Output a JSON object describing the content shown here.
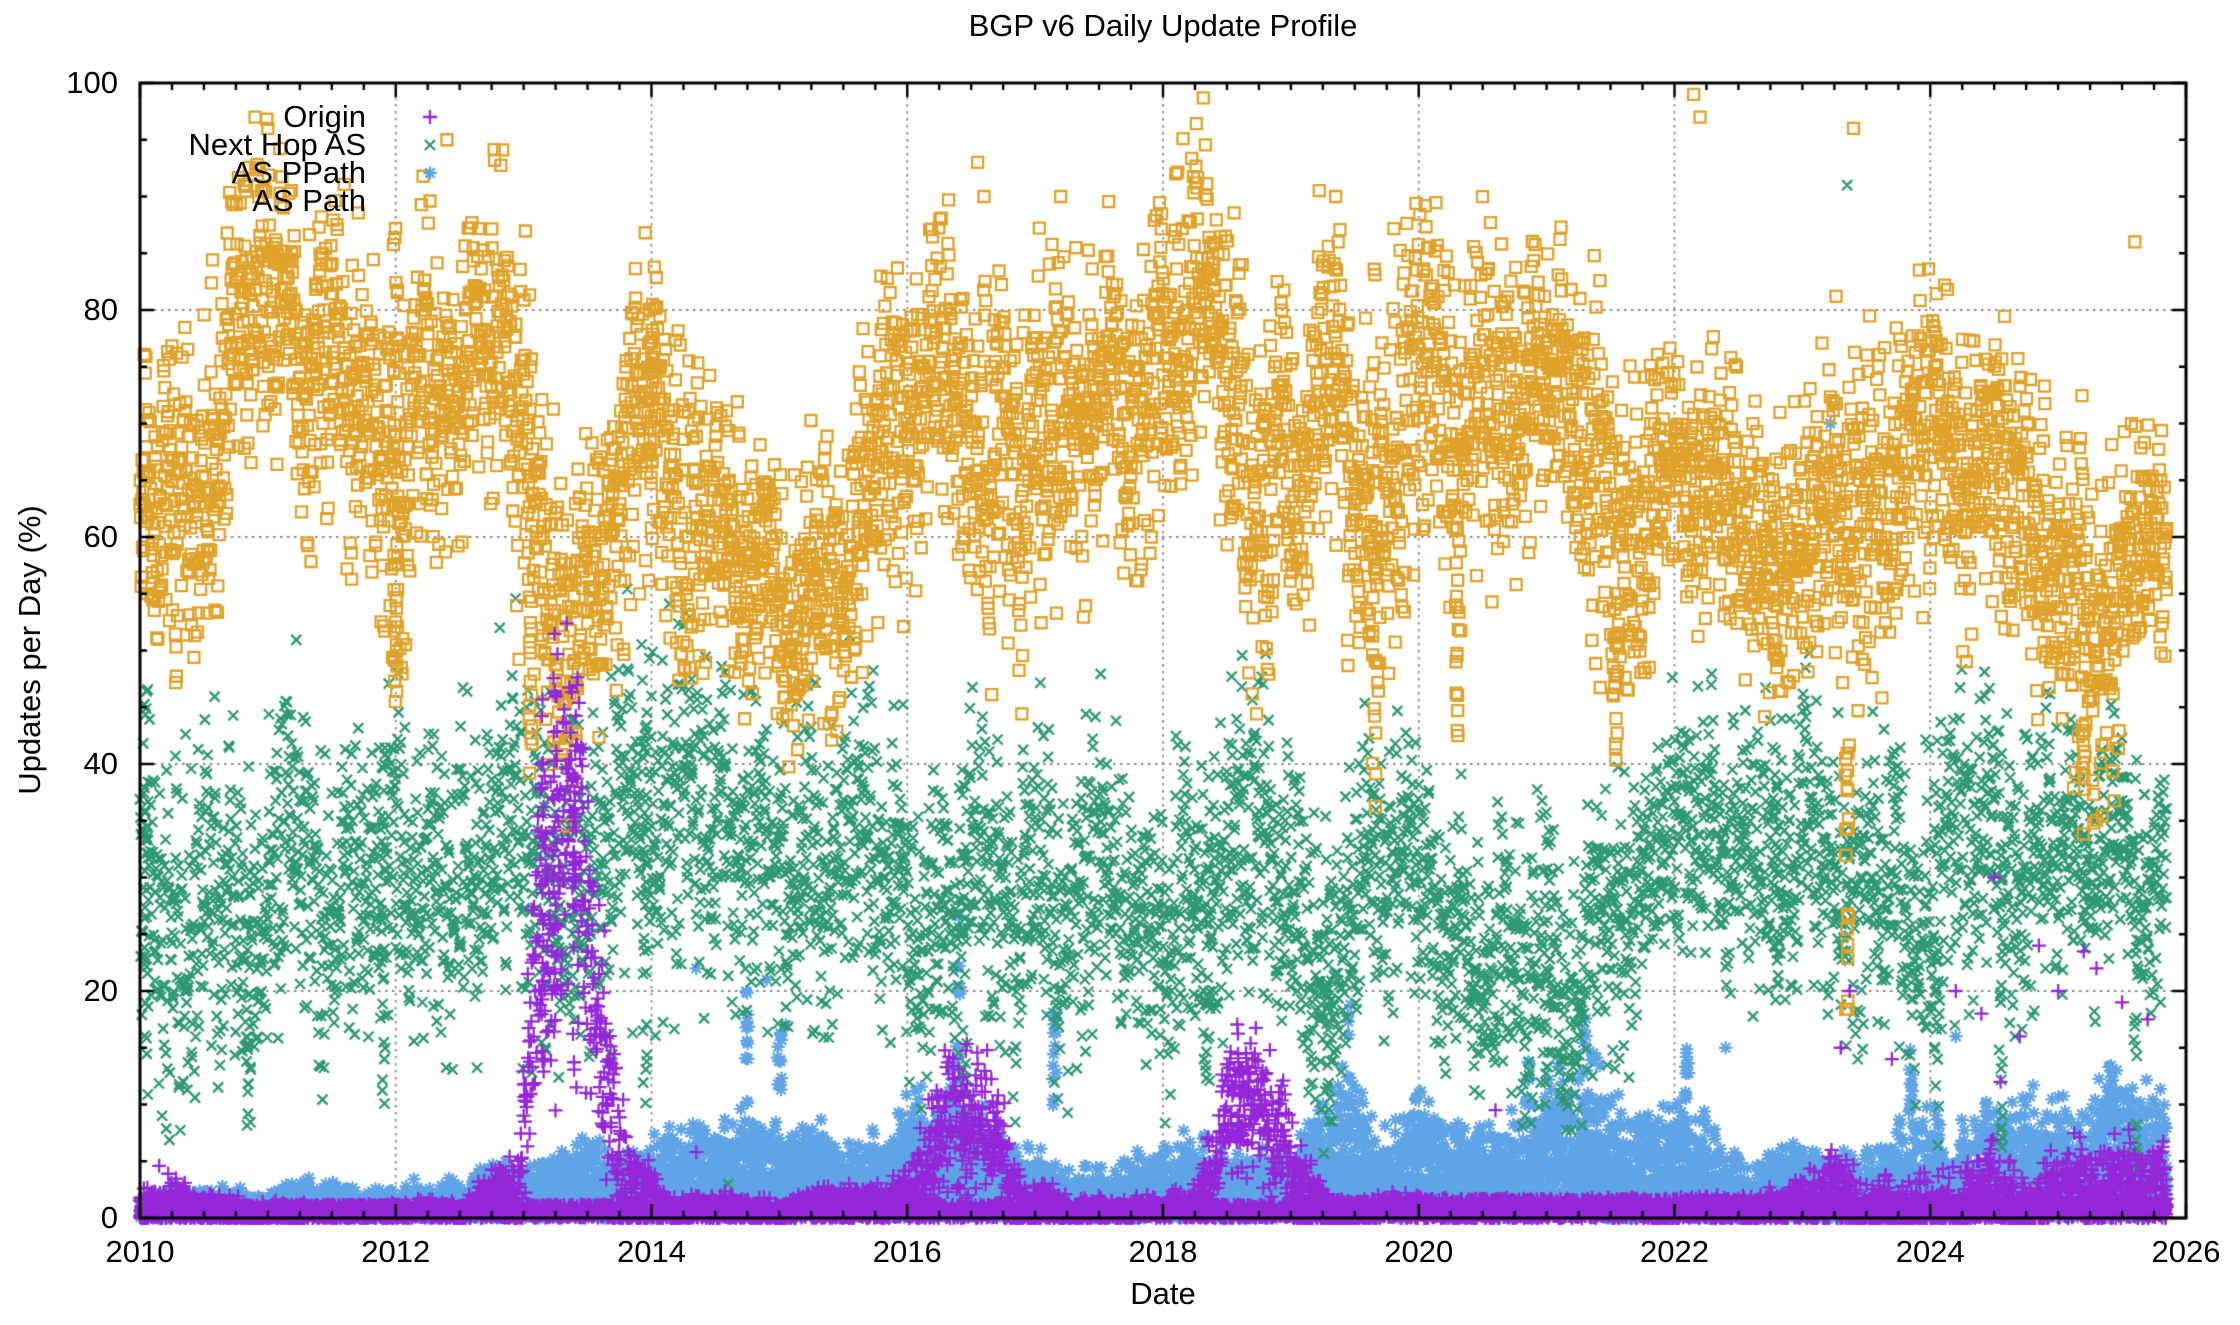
{
  "chart_data": {
    "type": "scatter",
    "title": "BGP v6 Daily Update Profile",
    "xlabel": "Date",
    "ylabel": "Updates per Day (%)",
    "x_range": [
      2010,
      2026
    ],
    "y_range": [
      0,
      100
    ],
    "x_ticks": [
      2010,
      2012,
      2014,
      2016,
      2018,
      2020,
      2022,
      2024,
      2026
    ],
    "y_ticks": [
      0,
      20,
      40,
      60,
      80,
      100
    ],
    "x_minor_step": 0.25,
    "y_minor_step": 5,
    "grid": {
      "on": true,
      "style": "dotted",
      "color": "#8c8c8c",
      "x_lines": [
        2012,
        2014,
        2016,
        2018,
        2020,
        2022,
        2024
      ],
      "y_lines": [
        20,
        40,
        60,
        80
      ]
    },
    "legend_position": "top-left-inside",
    "data_start": 2010.0,
    "data_end": 2025.85,
    "sampling": "daily",
    "axis_color": "#000000",
    "series": [
      {
        "name": "Origin",
        "marker": "plus",
        "color": "#9428D8",
        "band": [
          [
            2010.0,
            1.5,
            1.1
          ],
          [
            2010.6,
            0.9,
            0.8
          ],
          [
            2011.5,
            0.5,
            0.4
          ],
          [
            2012.5,
            0.6,
            0.5
          ],
          [
            2012.95,
            2.5,
            2.0
          ],
          [
            2013.1,
            22,
            10
          ],
          [
            2013.3,
            34,
            11
          ],
          [
            2013.45,
            29,
            10
          ],
          [
            2013.6,
            14,
            8
          ],
          [
            2013.8,
            4,
            3
          ],
          [
            2014.1,
            1.0,
            0.8
          ],
          [
            2015.0,
            0.7,
            0.6
          ],
          [
            2015.9,
            1.2,
            1.0
          ],
          [
            2016.15,
            4,
            3
          ],
          [
            2016.35,
            8,
            4
          ],
          [
            2016.55,
            9,
            4
          ],
          [
            2016.75,
            5,
            3
          ],
          [
            2016.95,
            1.5,
            1.2
          ],
          [
            2017.6,
            0.6,
            0.5
          ],
          [
            2018.25,
            1.0,
            0.8
          ],
          [
            2018.45,
            6,
            3
          ],
          [
            2018.65,
            10,
            4
          ],
          [
            2018.85,
            8,
            4
          ],
          [
            2019.05,
            4,
            2.5
          ],
          [
            2019.2,
            3,
            2
          ],
          [
            2019.4,
            0.8,
            0.7
          ],
          [
            2020.0,
            0.7,
            0.6
          ],
          [
            2021.0,
            0.6,
            0.5
          ],
          [
            2022.0,
            0.7,
            0.6
          ],
          [
            2022.8,
            1.0,
            0.9
          ],
          [
            2023.2,
            2.5,
            2.0
          ],
          [
            2023.6,
            2.0,
            1.6
          ],
          [
            2024.0,
            2.2,
            1.8
          ],
          [
            2024.5,
            3.0,
            2.4
          ],
          [
            2025.0,
            2.6,
            2.0
          ],
          [
            2025.4,
            3.4,
            2.6
          ],
          [
            2025.85,
            2.6,
            2.0
          ]
        ],
        "columns": [
          [
            2013.15,
            12,
            46
          ],
          [
            2013.25,
            16,
            52
          ],
          [
            2013.4,
            10,
            42
          ],
          [
            2016.45,
            3,
            16
          ],
          [
            2018.6,
            4,
            15
          ]
        ],
        "outliers": [
          [
            2010.15,
            4.6
          ],
          [
            2010.22,
            3.9
          ],
          [
            2010.35,
            3.1
          ],
          [
            2012.78,
            4.2
          ],
          [
            2014.35,
            5.8
          ],
          [
            2020.6,
            9.5
          ],
          [
            2023.3,
            15
          ],
          [
            2023.37,
            20
          ],
          [
            2023.7,
            14
          ],
          [
            2024.2,
            20
          ],
          [
            2024.4,
            18
          ],
          [
            2024.5,
            30
          ],
          [
            2024.55,
            12
          ],
          [
            2024.7,
            16
          ],
          [
            2024.85,
            24
          ],
          [
            2025.0,
            20
          ],
          [
            2025.2,
            23.5
          ],
          [
            2025.3,
            22
          ],
          [
            2025.5,
            19
          ],
          [
            2025.7,
            17.5
          ]
        ],
        "base_strip": {
          "amplitude_before_2019": 1.2,
          "amplitude_after_2019": 1.7
        }
      },
      {
        "name": "Next Hop AS",
        "marker": "cross",
        "color": "#2E9973",
        "band": [
          [
            2010.0,
            30,
            9
          ],
          [
            2010.3,
            28,
            10
          ],
          [
            2010.7,
            24,
            9
          ],
          [
            2011.0,
            26,
            9
          ],
          [
            2011.3,
            30,
            8
          ],
          [
            2011.7,
            29,
            9
          ],
          [
            2012.0,
            32,
            8
          ],
          [
            2012.4,
            31,
            8
          ],
          [
            2012.8,
            28,
            9
          ],
          [
            2013.2,
            27,
            9
          ],
          [
            2013.6,
            29,
            9
          ],
          [
            2014.0,
            31,
            10
          ],
          [
            2014.4,
            34,
            9
          ],
          [
            2014.8,
            37,
            8
          ],
          [
            2015.2,
            36,
            8
          ],
          [
            2015.6,
            33,
            9
          ],
          [
            2016.0,
            30,
            8
          ],
          [
            2016.4,
            26,
            8
          ],
          [
            2016.8,
            28,
            8
          ],
          [
            2017.2,
            30,
            8
          ],
          [
            2017.6,
            31,
            8
          ],
          [
            2018.0,
            30,
            8
          ],
          [
            2018.4,
            28,
            8
          ],
          [
            2018.8,
            30,
            8
          ],
          [
            2019.2,
            26,
            8
          ],
          [
            2019.6,
            29,
            7
          ],
          [
            2020.0,
            30,
            7
          ],
          [
            2020.4,
            28,
            7
          ],
          [
            2020.8,
            24,
            8
          ],
          [
            2021.1,
            20,
            7
          ],
          [
            2021.4,
            28,
            8
          ],
          [
            2021.7,
            33,
            7
          ],
          [
            2022.0,
            34,
            7
          ],
          [
            2022.4,
            33,
            7
          ],
          [
            2022.8,
            32,
            7
          ],
          [
            2023.2,
            30,
            8
          ],
          [
            2023.6,
            29,
            8
          ],
          [
            2024.0,
            27,
            9
          ],
          [
            2024.4,
            31,
            8
          ],
          [
            2024.8,
            33,
            7
          ],
          [
            2025.2,
            34,
            6
          ],
          [
            2025.5,
            33,
            6
          ],
          [
            2025.85,
            31,
            6
          ]
        ],
        "columns": [
          [
            2010.05,
            8,
            47
          ],
          [
            2010.85,
            8,
            30
          ],
          [
            2011.9,
            10,
            40
          ],
          [
            2013.95,
            8,
            45
          ],
          [
            2016.45,
            8,
            28
          ],
          [
            2018.35,
            12,
            35
          ],
          [
            2019.3,
            10,
            30
          ],
          [
            2021.0,
            10,
            26
          ],
          [
            2022.8,
            15,
            42
          ],
          [
            2024.05,
            6,
            25
          ],
          [
            2024.55,
            5,
            30
          ],
          [
            2025.6,
            2,
            20
          ]
        ],
        "outliers": [
          [
            2023.35,
            91
          ],
          [
            2025.8,
            19
          ],
          [
            2019.05,
            20
          ],
          [
            2014.6,
            3
          ]
        ]
      },
      {
        "name": "AS PPath",
        "marker": "asterisk",
        "color": "#5FA4E6",
        "band": [
          [
            2010.0,
            1.0,
            0.7
          ],
          [
            2011.0,
            1.2,
            0.8
          ],
          [
            2012.0,
            1.5,
            1.0
          ],
          [
            2012.8,
            2.0,
            1.2
          ],
          [
            2013.2,
            3.0,
            1.8
          ],
          [
            2013.6,
            4.0,
            2.0
          ],
          [
            2014.0,
            4.5,
            2.2
          ],
          [
            2014.5,
            4.0,
            2.0
          ],
          [
            2015.0,
            4.5,
            2.2
          ],
          [
            2015.5,
            3.5,
            2.0
          ],
          [
            2016.0,
            4.0,
            2.2
          ],
          [
            2016.35,
            6.0,
            3.5
          ],
          [
            2016.7,
            4.0,
            2.0
          ],
          [
            2017.0,
            3.0,
            1.8
          ],
          [
            2017.5,
            2.5,
            1.5
          ],
          [
            2018.0,
            3.0,
            1.8
          ],
          [
            2018.5,
            3.5,
            2.0
          ],
          [
            2019.0,
            3.0,
            2.0
          ],
          [
            2019.4,
            7.0,
            4.0
          ],
          [
            2019.8,
            4.5,
            2.5
          ],
          [
            2020.2,
            4.0,
            2.2
          ],
          [
            2020.6,
            5.0,
            3.0
          ],
          [
            2021.0,
            6.0,
            3.5
          ],
          [
            2021.4,
            6.5,
            3.5
          ],
          [
            2021.8,
            4.0,
            2.2
          ],
          [
            2022.2,
            5.0,
            3.0
          ],
          [
            2022.6,
            3.0,
            1.8
          ],
          [
            2023.0,
            2.5,
            1.5
          ],
          [
            2023.5,
            3.0,
            2.0
          ],
          [
            2023.9,
            5.0,
            3.0
          ],
          [
            2024.3,
            4.5,
            2.5
          ],
          [
            2024.7,
            5.0,
            2.8
          ],
          [
            2025.1,
            5.5,
            3.0
          ],
          [
            2025.5,
            6.5,
            3.2
          ],
          [
            2025.85,
            5.5,
            3.0
          ]
        ],
        "columns": [
          [
            2014.75,
            8,
            21
          ],
          [
            2015.0,
            10,
            17
          ],
          [
            2016.4,
            10,
            28
          ],
          [
            2017.15,
            8,
            20
          ],
          [
            2019.45,
            8,
            19
          ],
          [
            2020.85,
            8,
            16
          ],
          [
            2021.3,
            10,
            19
          ],
          [
            2022.1,
            8,
            15
          ],
          [
            2023.85,
            8,
            15
          ],
          [
            2025.4,
            8,
            14
          ]
        ],
        "outliers": [
          [
            2023.22,
            70
          ],
          [
            2014.35,
            22
          ],
          [
            2014.9,
            21
          ],
          [
            2015.05,
            17
          ],
          [
            2022.4,
            15
          ],
          [
            2024.2,
            16
          ]
        ],
        "fill_wedge_below_band": true
      },
      {
        "name": "AS Path",
        "marker": "square",
        "color": "#DFA22B",
        "band": [
          [
            2010.0,
            63,
            7
          ],
          [
            2010.4,
            66,
            8
          ],
          [
            2010.8,
            82,
            8
          ],
          [
            2011.1,
            85,
            7
          ],
          [
            2011.4,
            76,
            8
          ],
          [
            2011.8,
            70,
            9
          ],
          [
            2012.1,
            72,
            10
          ],
          [
            2012.45,
            82,
            7
          ],
          [
            2012.75,
            80,
            8
          ],
          [
            2013.0,
            66,
            10
          ],
          [
            2013.3,
            52,
            8
          ],
          [
            2013.6,
            50,
            7
          ],
          [
            2013.85,
            64,
            9
          ],
          [
            2014.05,
            70,
            8
          ],
          [
            2014.3,
            62,
            9
          ],
          [
            2014.6,
            56,
            7
          ],
          [
            2014.9,
            54,
            6
          ],
          [
            2015.2,
            56,
            7
          ],
          [
            2015.5,
            62,
            8
          ],
          [
            2015.8,
            68,
            8
          ],
          [
            2016.1,
            73,
            8
          ],
          [
            2016.4,
            77,
            8
          ],
          [
            2016.7,
            70,
            10
          ],
          [
            2017.0,
            70,
            9
          ],
          [
            2017.3,
            76,
            7
          ],
          [
            2017.6,
            73,
            8
          ],
          [
            2018.0,
            70,
            9
          ],
          [
            2018.3,
            74,
            8
          ],
          [
            2018.6,
            70,
            9
          ],
          [
            2019.0,
            67,
            9
          ],
          [
            2019.3,
            74,
            8
          ],
          [
            2019.6,
            62,
            10
          ],
          [
            2019.9,
            66,
            9
          ],
          [
            2020.2,
            64,
            9
          ],
          [
            2020.5,
            68,
            9
          ],
          [
            2020.8,
            73,
            8
          ],
          [
            2021.1,
            74,
            8
          ],
          [
            2021.4,
            66,
            10
          ],
          [
            2021.7,
            58,
            8
          ],
          [
            2022.0,
            60,
            6
          ],
          [
            2022.3,
            63,
            7
          ],
          [
            2022.6,
            64,
            7
          ],
          [
            2022.9,
            60,
            7
          ],
          [
            2023.2,
            62,
            8
          ],
          [
            2023.5,
            60,
            9
          ],
          [
            2023.8,
            64,
            8
          ],
          [
            2024.1,
            62,
            8
          ],
          [
            2024.4,
            64,
            8
          ],
          [
            2024.7,
            58,
            8
          ],
          [
            2025.0,
            56,
            9
          ],
          [
            2025.3,
            52,
            9
          ],
          [
            2025.55,
            60,
            7
          ],
          [
            2025.75,
            59,
            6
          ]
        ],
        "columns": [
          [
            2012.0,
            45,
            88
          ],
          [
            2013.05,
            38,
            60
          ],
          [
            2014.0,
            58,
            80
          ],
          [
            2019.65,
            36,
            60
          ],
          [
            2020.3,
            42,
            62
          ],
          [
            2021.55,
            38,
            60
          ],
          [
            2023.35,
            17,
            45
          ],
          [
            2025.2,
            33,
            52
          ]
        ],
        "outliers": [
          [
            2010.9,
            97
          ],
          [
            2011.0,
            96
          ],
          [
            2012.4,
            95
          ],
          [
            2016.55,
            93
          ],
          [
            2016.6,
            90
          ],
          [
            2017.2,
            90
          ],
          [
            2018.1,
            92
          ],
          [
            2019.35,
            90
          ],
          [
            2022.15,
            99
          ],
          [
            2022.2,
            97
          ],
          [
            2023.4,
            96
          ],
          [
            2025.6,
            86
          ]
        ]
      }
    ]
  }
}
